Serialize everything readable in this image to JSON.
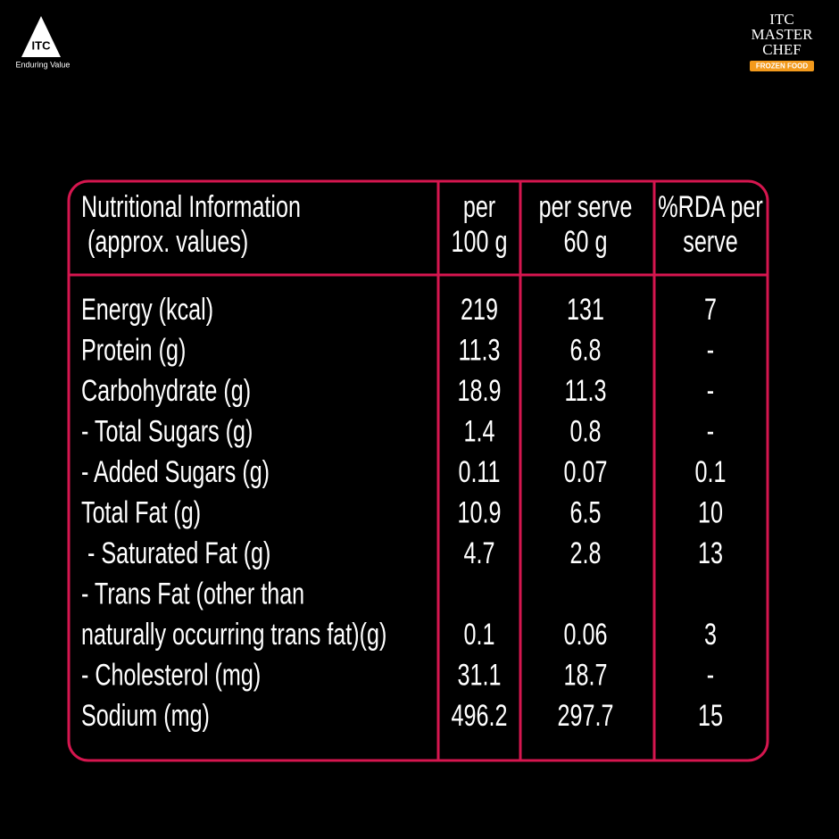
{
  "brand": {
    "left_logo": "ITC",
    "left_tagline": "Enduring Value",
    "right_logo_lines": [
      "ITC",
      "MASTER",
      "CHEF"
    ],
    "right_logo_badge": "FROZEN FOOD"
  },
  "table": {
    "header": [
      [
        "Nutritional Information",
        " (approx. values)"
      ],
      [
        "per",
        "100 g"
      ],
      [
        "per serve",
        "60 g"
      ],
      [
        "%RDA per",
        "serve"
      ]
    ],
    "rows": [
      [
        [
          "Energy (kcal)"
        ],
        "219",
        "131",
        "7"
      ],
      [
        [
          "Protein (g)"
        ],
        "11.3",
        "6.8",
        "-"
      ],
      [
        [
          "Carbohydrate (g)"
        ],
        "18.9",
        "11.3",
        "-"
      ],
      [
        [
          "- Total Sugars (g)"
        ],
        "1.4",
        "0.8",
        "-"
      ],
      [
        [
          "- Added Sugars (g)"
        ],
        "0.11",
        "0.07",
        "0.1"
      ],
      [
        [
          "Total Fat (g)"
        ],
        "10.9",
        "6.5",
        "10"
      ],
      [
        [
          " - Saturated Fat (g)"
        ],
        "4.7",
        "2.8",
        "13"
      ],
      [
        [
          "- Trans Fat (other than",
          "naturally occurring trans fat)(g)"
        ],
        "0.1",
        "0.06",
        "3"
      ],
      [
        [
          "- Cholesterol (mg)"
        ],
        "31.1",
        "18.7",
        "-"
      ],
      [
        [
          "Sodium (mg)"
        ],
        "496.2",
        "297.7",
        "15"
      ]
    ]
  }
}
